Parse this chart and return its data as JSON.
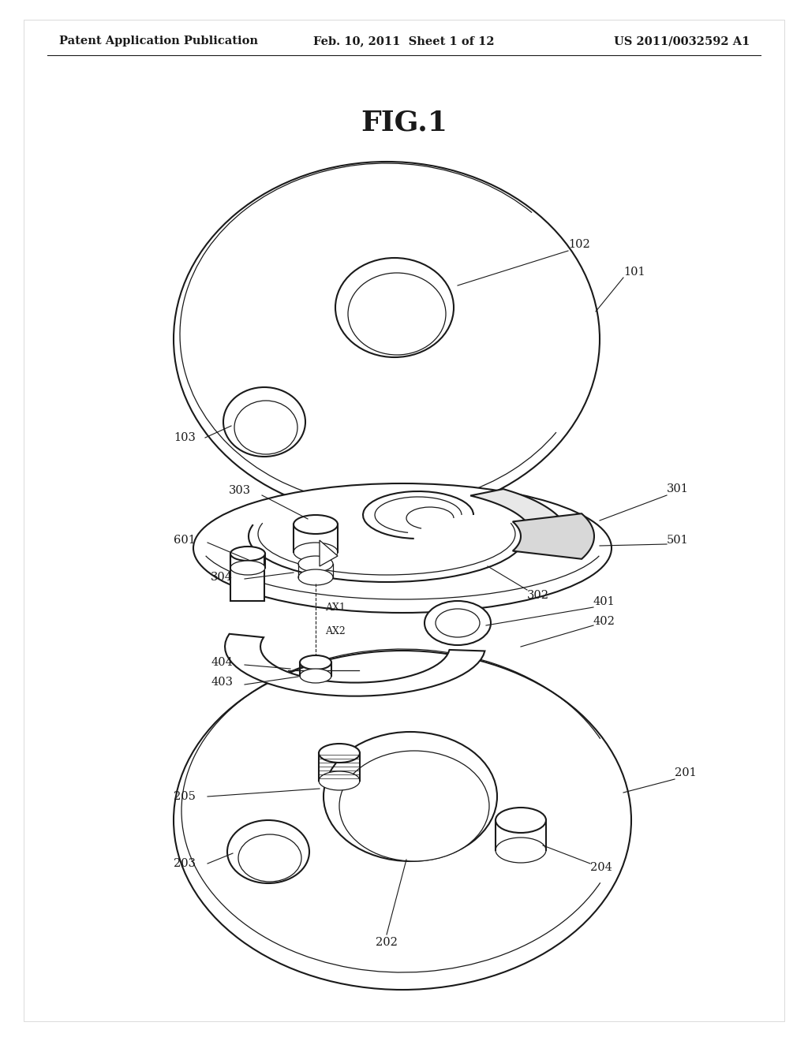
{
  "title": "FIG.1",
  "header_left": "Patent Application Publication",
  "header_center": "Feb. 10, 2011  Sheet 1 of 12",
  "header_right": "US 2011/0032592 A1",
  "bg_color": "#ffffff",
  "line_color": "#1a1a1a",
  "header_fontsize": 10.5,
  "title_fontsize": 26,
  "label_fontsize": 10.5
}
